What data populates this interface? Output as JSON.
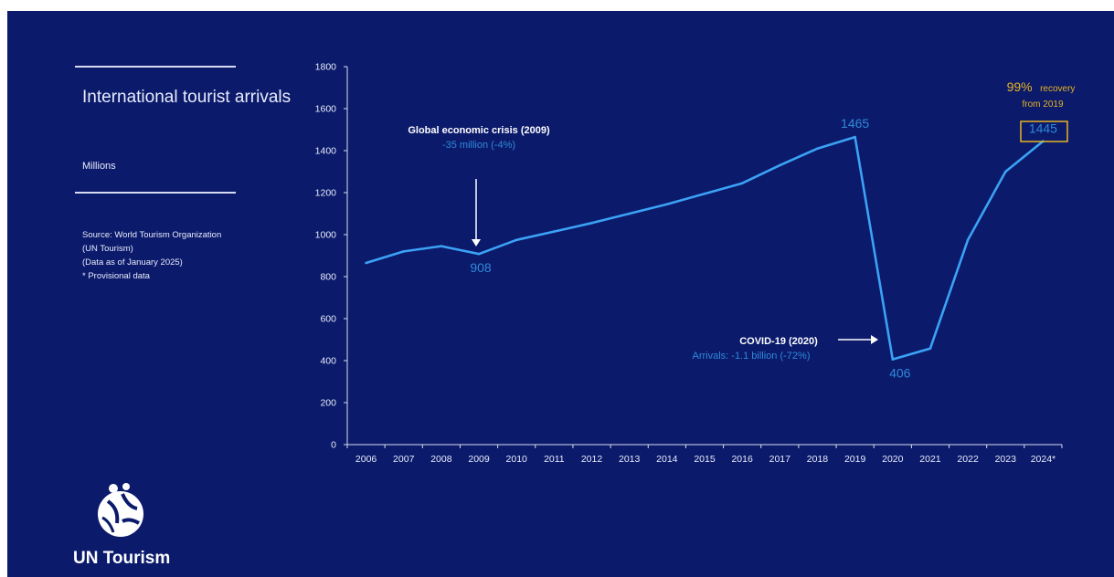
{
  "panel": {
    "title": "International tourist arrivals",
    "unit": "Millions",
    "source_lines": [
      "Source: World Tourism Organization",
      "(UN Tourism)",
      "(Data as of January 2025)",
      "* Provisional data"
    ]
  },
  "logo": {
    "text": "UN Tourism"
  },
  "annotations": {
    "crisis_title": "Global economic crisis (2009)",
    "crisis_sub": "-35 million (-4%)",
    "covid_title": "COVID-19 (2020)",
    "covid_sub": "Arrivals: -1.1 billion (-72%)",
    "recovery_pct": "99%",
    "recovery_word": "recovery",
    "recovery_from": "from 2019"
  },
  "colors": {
    "background": "#0b1a6b",
    "line": "#3ba2f5",
    "label_blue": "#2f8ad9",
    "highlight": "#e6b422"
  },
  "chart_data": {
    "type": "line",
    "categories": [
      "2006",
      "2007",
      "2008",
      "2009",
      "2010",
      "2011",
      "2012",
      "2013",
      "2014",
      "2015",
      "2016",
      "2017",
      "2018",
      "2019",
      "2020",
      "2021",
      "2022",
      "2023",
      "2024*"
    ],
    "values": [
      865,
      920,
      945,
      908,
      975,
      1015,
      1055,
      1100,
      1145,
      1195,
      1245,
      1330,
      1410,
      1465,
      406,
      458,
      975,
      1300,
      1445
    ],
    "ylim": [
      0,
      1800
    ],
    "yticks": [
      0,
      200,
      400,
      600,
      800,
      1000,
      1200,
      1400,
      1600,
      1800
    ],
    "data_labels": [
      {
        "category": "2009",
        "text": "908"
      },
      {
        "category": "2019",
        "text": "1465"
      },
      {
        "category": "2020",
        "text": "406"
      },
      {
        "category": "2024*",
        "text": "1445"
      }
    ],
    "grid": false,
    "xlabel": "",
    "ylabel": ""
  }
}
